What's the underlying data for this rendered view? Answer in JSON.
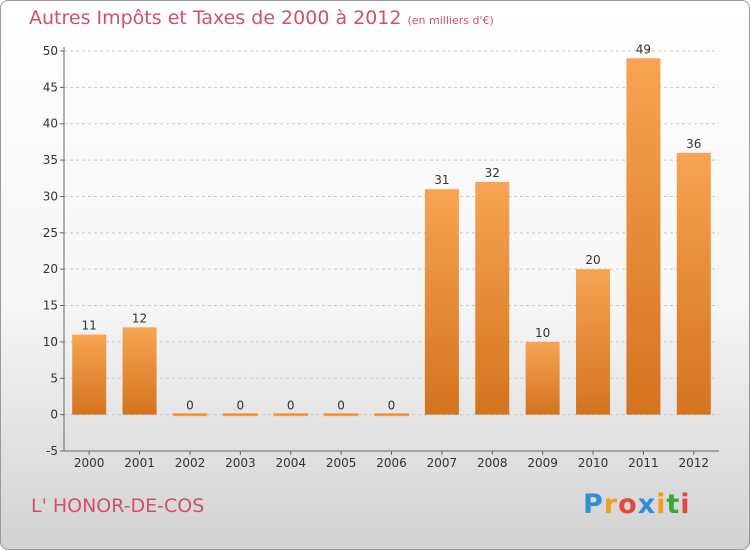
{
  "title": "Autres Impôts et Taxes de 2000 à 2012",
  "unit_label": "(en milliers d'€)",
  "commune": "L' HONOR-DE-COS",
  "brand": {
    "letters": [
      "P",
      "r",
      "o",
      "x",
      "i",
      "t",
      "i"
    ],
    "colors": [
      "#2e8fd4",
      "#f0a020",
      "#e8463c",
      "#2e8fd4",
      "#f0a020",
      "#3aa838",
      "#e8463c"
    ]
  },
  "colors": {
    "bar_light": "#f7a452",
    "bar_dark": "#d4731f",
    "title": "#d0506a",
    "grid": "#c8c8c8",
    "axis": "#666666"
  },
  "chart_data": {
    "type": "bar",
    "title": "Autres Impôts et Taxes de 2000 à 2012",
    "subtitle": "(en milliers d'€)",
    "categories": [
      "2000",
      "2001",
      "2002",
      "2003",
      "2004",
      "2005",
      "2006",
      "2007",
      "2008",
      "2009",
      "2010",
      "2011",
      "2012"
    ],
    "values": [
      11,
      12,
      0,
      0,
      0,
      0,
      0,
      31,
      32,
      10,
      20,
      49,
      36
    ],
    "ylim": [
      -5,
      50
    ],
    "yticks": [
      -5,
      0,
      5,
      10,
      15,
      20,
      25,
      30,
      35,
      40,
      45,
      50
    ],
    "grid": "horizontal dashed",
    "xlabel": "",
    "ylabel": ""
  }
}
